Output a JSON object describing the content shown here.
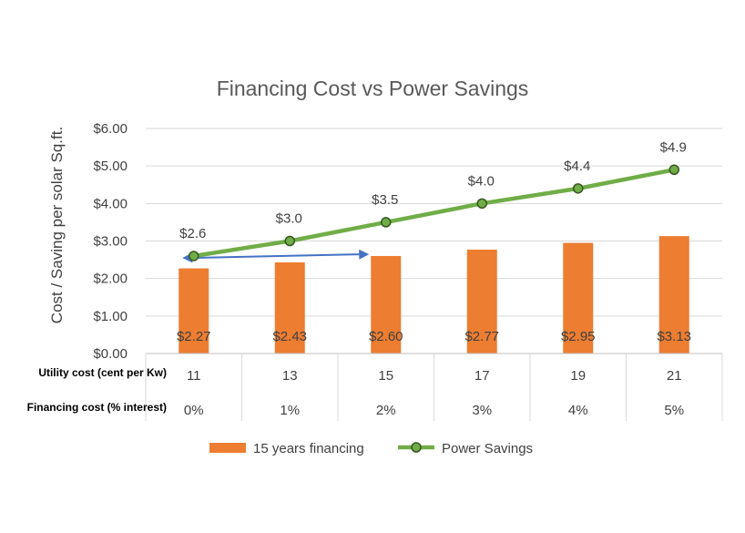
{
  "chart_data": {
    "type": "bar",
    "title": "Financing Cost vs Power Savings",
    "ylabel": "Cost / Saving per solar Sq.ft.",
    "ylim": [
      0,
      6
    ],
    "yticks": [
      "$0.00",
      "$1.00",
      "$2.00",
      "$3.00",
      "$4.00",
      "$5.00",
      "$6.00"
    ],
    "grid": true,
    "legend_position": "bottom",
    "table_rows": [
      {
        "label": "Utility cost (cent per Kw)",
        "values": [
          "11",
          "13",
          "15",
          "17",
          "19",
          "21"
        ]
      },
      {
        "label": "Financing cost (% interest)",
        "values": [
          "0%",
          "1%",
          "2%",
          "3%",
          "4%",
          "5%"
        ]
      }
    ],
    "series": [
      {
        "name": "15 years financing",
        "type": "bar",
        "color": "#ED7D31",
        "values": [
          2.27,
          2.43,
          2.6,
          2.77,
          2.95,
          3.13
        ],
        "labels": [
          "$2.27",
          "$2.43",
          "$2.60",
          "$2.77",
          "$2.95",
          "$3.13"
        ]
      },
      {
        "name": "Power Savings",
        "type": "line",
        "color": "#70AD47",
        "values": [
          2.6,
          3.0,
          3.5,
          4.0,
          4.4,
          4.9
        ],
        "labels": [
          "$2.6",
          "$3.0",
          "$3.5",
          "$4.0",
          "$4.4",
          "$4.9"
        ]
      }
    ],
    "annotation": {
      "type": "double-arrow",
      "color": "#4472C4",
      "from_category": 0,
      "to_category": 2,
      "y": 2.5
    }
  }
}
